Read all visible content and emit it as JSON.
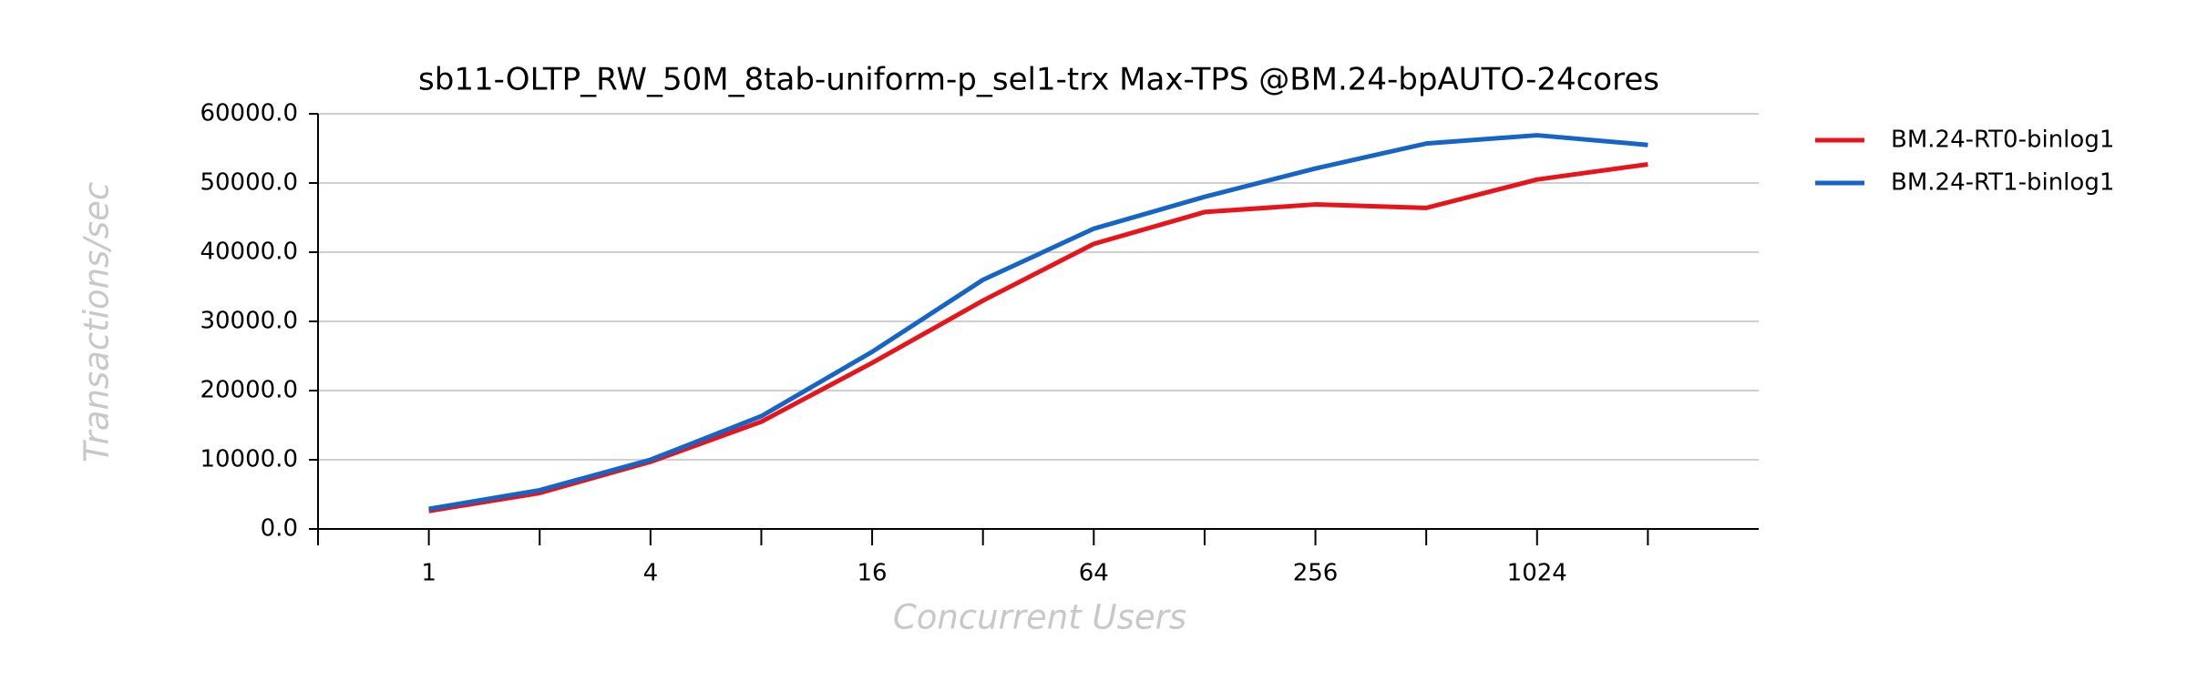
{
  "chart_data": {
    "type": "line",
    "title": "sb11-OLTP_RW_50M_8tab-uniform-p_sel1-trx Max-TPS @BM.24-bpAUTO-24cores",
    "x_label": "Concurrent Users",
    "y_label": "Transactions/sec",
    "categories": [
      "1",
      null,
      "4",
      null,
      "16",
      null,
      "64",
      null,
      "256",
      null,
      "1024",
      null
    ],
    "series": [
      {
        "name": "BM.24-RT0-binlog1",
        "color": "#e8141b",
        "values": [
          2600,
          5200,
          9700,
          15500,
          24000,
          33000,
          41200,
          45800,
          46900,
          46400,
          50500,
          52700
        ]
      },
      {
        "name": "BM.24-RT1-binlog1",
        "color": "#1565c8",
        "values": [
          2900,
          5600,
          10000,
          16300,
          25600,
          36000,
          43400,
          48000,
          52100,
          55700,
          56900,
          55500
        ]
      }
    ],
    "ylim": [
      0,
      60000
    ],
    "yticks": [
      {
        "value": 0,
        "label": "0.0"
      },
      {
        "value": 10000,
        "label": "10000.0"
      },
      {
        "value": 20000,
        "label": "20000.0"
      },
      {
        "value": 30000,
        "label": "30000.0"
      },
      {
        "value": 40000,
        "label": "40000.0"
      },
      {
        "value": 50000,
        "label": "50000.0"
      },
      {
        "value": 60000,
        "label": "60000.0"
      }
    ],
    "grid": true,
    "legend": "right"
  }
}
